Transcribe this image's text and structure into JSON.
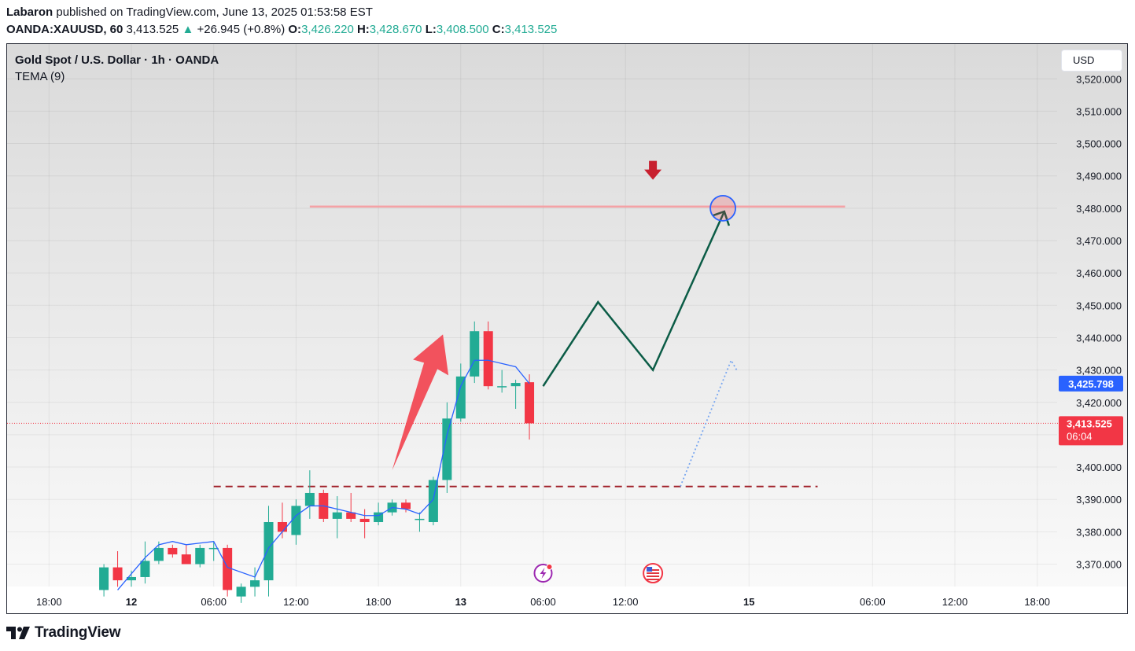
{
  "header": {
    "author": "Labaron",
    "published": "published on TradingView.com, June 13, 2025 01:53:58 EST"
  },
  "quote": {
    "symbol": "OANDA:XAUUSD, 60",
    "last": "3,413.525",
    "change": "+26.945 (+0.8%)",
    "open_label": "O:",
    "open": "3,426.220",
    "high_label": "H:",
    "high": "3,428.670",
    "low_label": "L:",
    "low": "3,408.500",
    "close_label": "C:",
    "close": "3,413.525"
  },
  "chart": {
    "title": "Gold Spot / U.S. Dollar · 1h · OANDA",
    "indicator": "TEMA (9)",
    "currency_button": "USD",
    "tema_tag": "3,425.798",
    "price_tag": "3,413.525",
    "countdown": "06:04"
  },
  "footer": {
    "brand": "TradingView"
  },
  "colors": {
    "up": "#22ab94",
    "down": "#f23645",
    "tema": "#2962ff",
    "projection": "#0b5c46",
    "resistance": "#f4a2a6",
    "support": "#a01f28"
  },
  "chart_data": {
    "type": "candlestick",
    "symbol": "XAUUSD",
    "timeframe": "1h",
    "y_axis": {
      "min": 3363,
      "max": 3525,
      "ticks": [
        "3,370.000",
        "3,380.000",
        "3,390.000",
        "3,400.000",
        "3,410.000",
        "3,420.000",
        "3,430.000",
        "3,440.000",
        "3,450.000",
        "3,460.000",
        "3,470.000",
        "3,480.000",
        "3,490.000",
        "3,500.000",
        "3,510.000",
        "3,520.000"
      ],
      "tick_values": [
        3370,
        3380,
        3390,
        3400,
        3410,
        3420,
        3430,
        3440,
        3450,
        3460,
        3470,
        3480,
        3490,
        3500,
        3510,
        3520
      ]
    },
    "x_axis": {
      "labels": [
        {
          "text": "18:00",
          "t": -6,
          "bold": false
        },
        {
          "text": "12",
          "t": 0,
          "bold": true
        },
        {
          "text": "06:00",
          "t": 6,
          "bold": false
        },
        {
          "text": "12:00",
          "t": 12,
          "bold": false
        },
        {
          "text": "18:00",
          "t": 18,
          "bold": false
        },
        {
          "text": "13",
          "t": 24,
          "bold": true
        },
        {
          "text": "06:00",
          "t": 30,
          "bold": false
        },
        {
          "text": "12:00",
          "t": 36,
          "bold": false
        },
        {
          "text": "15",
          "t": 45,
          "bold": true
        },
        {
          "text": "06:00",
          "t": 54,
          "bold": false
        },
        {
          "text": "12:00",
          "t": 60,
          "bold": false
        },
        {
          "text": "18:00",
          "t": 66,
          "bold": false
        }
      ]
    },
    "candles": [
      {
        "t": -2,
        "o": 3362,
        "h": 3370,
        "l": 3360,
        "c": 3369
      },
      {
        "t": -1,
        "o": 3369,
        "h": 3374,
        "l": 3363,
        "c": 3365
      },
      {
        "t": 0,
        "o": 3365,
        "h": 3368,
        "l": 3363,
        "c": 3366
      },
      {
        "t": 1,
        "o": 3366,
        "h": 3377,
        "l": 3364,
        "c": 3371
      },
      {
        "t": 2,
        "o": 3371,
        "h": 3377,
        "l": 3370,
        "c": 3375
      },
      {
        "t": 3,
        "o": 3375,
        "h": 3376,
        "l": 3372,
        "c": 3373
      },
      {
        "t": 4,
        "o": 3373,
        "h": 3376,
        "l": 3370,
        "c": 3370
      },
      {
        "t": 5,
        "o": 3370,
        "h": 3376,
        "l": 3369,
        "c": 3375
      },
      {
        "t": 6,
        "o": 3375,
        "h": 3377,
        "l": 3371,
        "c": 3375
      },
      {
        "t": 7,
        "o": 3375,
        "h": 3376,
        "l": 3360,
        "c": 3362
      },
      {
        "t": 8,
        "o": 3360,
        "h": 3364,
        "l": 3358,
        "c": 3363
      },
      {
        "t": 9,
        "o": 3363,
        "h": 3369,
        "l": 3360,
        "c": 3365
      },
      {
        "t": 10,
        "o": 3365,
        "h": 3388,
        "l": 3360,
        "c": 3383
      },
      {
        "t": 11,
        "o": 3383,
        "h": 3389,
        "l": 3378,
        "c": 3380
      },
      {
        "t": 12,
        "o": 3379,
        "h": 3390,
        "l": 3376,
        "c": 3388
      },
      {
        "t": 13,
        "o": 3388,
        "h": 3399,
        "l": 3384,
        "c": 3392
      },
      {
        "t": 14,
        "o": 3392,
        "h": 3393,
        "l": 3383,
        "c": 3384
      },
      {
        "t": 15,
        "o": 3384,
        "h": 3391,
        "l": 3378,
        "c": 3386
      },
      {
        "t": 16,
        "o": 3386,
        "h": 3392,
        "l": 3383,
        "c": 3384
      },
      {
        "t": 17,
        "o": 3384,
        "h": 3387,
        "l": 3378,
        "c": 3383
      },
      {
        "t": 18,
        "o": 3383,
        "h": 3389,
        "l": 3382,
        "c": 3386
      },
      {
        "t": 19,
        "o": 3386,
        "h": 3390,
        "l": 3385,
        "c": 3389
      },
      {
        "t": 20,
        "o": 3389,
        "h": 3390,
        "l": 3386,
        "c": 3387
      },
      {
        "t": 21,
        "o": 3384,
        "h": 3386,
        "l": 3380,
        "c": 3384
      },
      {
        "t": 22,
        "o": 3383,
        "h": 3397,
        "l": 3382,
        "c": 3396
      },
      {
        "t": 23,
        "o": 3396,
        "h": 3420,
        "l": 3392,
        "c": 3415
      },
      {
        "t": 24,
        "o": 3415,
        "h": 3432,
        "l": 3414,
        "c": 3428
      },
      {
        "t": 25,
        "o": 3428,
        "h": 3445,
        "l": 3426,
        "c": 3442
      },
      {
        "t": 26,
        "o": 3442,
        "h": 3445,
        "l": 3424,
        "c": 3425
      },
      {
        "t": 27,
        "o": 3425,
        "h": 3430,
        "l": 3423,
        "c": 3425
      },
      {
        "t": 28,
        "o": 3425,
        "h": 3427,
        "l": 3418,
        "c": 3426
      },
      {
        "t": 29,
        "o": 3426.22,
        "h": 3428.67,
        "l": 3408.5,
        "c": 3413.525
      }
    ],
    "tema": [
      {
        "t": -1,
        "v": 3362
      },
      {
        "t": 0,
        "v": 3367
      },
      {
        "t": 1,
        "v": 3372
      },
      {
        "t": 2,
        "v": 3376
      },
      {
        "t": 3,
        "v": 3377
      },
      {
        "t": 4,
        "v": 3376
      },
      {
        "t": 5,
        "v": 3376.5
      },
      {
        "t": 6,
        "v": 3377
      },
      {
        "t": 7,
        "v": 3369
      },
      {
        "t": 9,
        "v": 3366
      },
      {
        "t": 10,
        "v": 3375
      },
      {
        "t": 11,
        "v": 3380
      },
      {
        "t": 12,
        "v": 3385
      },
      {
        "t": 13,
        "v": 3388
      },
      {
        "t": 14,
        "v": 3388
      },
      {
        "t": 15,
        "v": 3387
      },
      {
        "t": 16,
        "v": 3386
      },
      {
        "t": 17,
        "v": 3385
      },
      {
        "t": 18,
        "v": 3385
      },
      {
        "t": 19,
        "v": 3387.5
      },
      {
        "t": 20,
        "v": 3387
      },
      {
        "t": 21,
        "v": 3385.5
      },
      {
        "t": 22,
        "v": 3390
      },
      {
        "t": 23,
        "v": 3410
      },
      {
        "t": 24,
        "v": 3425
      },
      {
        "t": 25,
        "v": 3433
      },
      {
        "t": 26,
        "v": 3433
      },
      {
        "t": 27,
        "v": 3432
      },
      {
        "t": 28,
        "v": 3431
      },
      {
        "t": 29,
        "v": 3425.798
      }
    ],
    "last_price": 3413.525,
    "tema_last": 3425.798,
    "annotations": {
      "resistance_line": {
        "price": 3480.5,
        "t_start": 13,
        "t_end": 52
      },
      "support_line": {
        "price": 3394,
        "t_start": 6,
        "t_end": 50
      },
      "projection_path": [
        {
          "t": 30,
          "p": 3425
        },
        {
          "t": 34,
          "p": 3451
        },
        {
          "t": 38,
          "p": 3430
        },
        {
          "t": 43.2,
          "p": 3479
        }
      ],
      "target_circle": {
        "t": 43.1,
        "p": 3480
      },
      "down_arrow": {
        "t": 38,
        "p": 3491
      },
      "up_arrow": {
        "t_start": 19,
        "p_start": 3399,
        "t_end": 22.7,
        "p_end": 3441
      },
      "dotted_path": [
        {
          "t": 40,
          "p": 3394
        },
        {
          "t": 43.7,
          "p": 3433
        },
        {
          "t": 44.1,
          "p": 3430
        }
      ],
      "event_markers": [
        {
          "t": 30,
          "kind": "lightning"
        },
        {
          "t": 38,
          "kind": "us-flag"
        }
      ]
    }
  }
}
